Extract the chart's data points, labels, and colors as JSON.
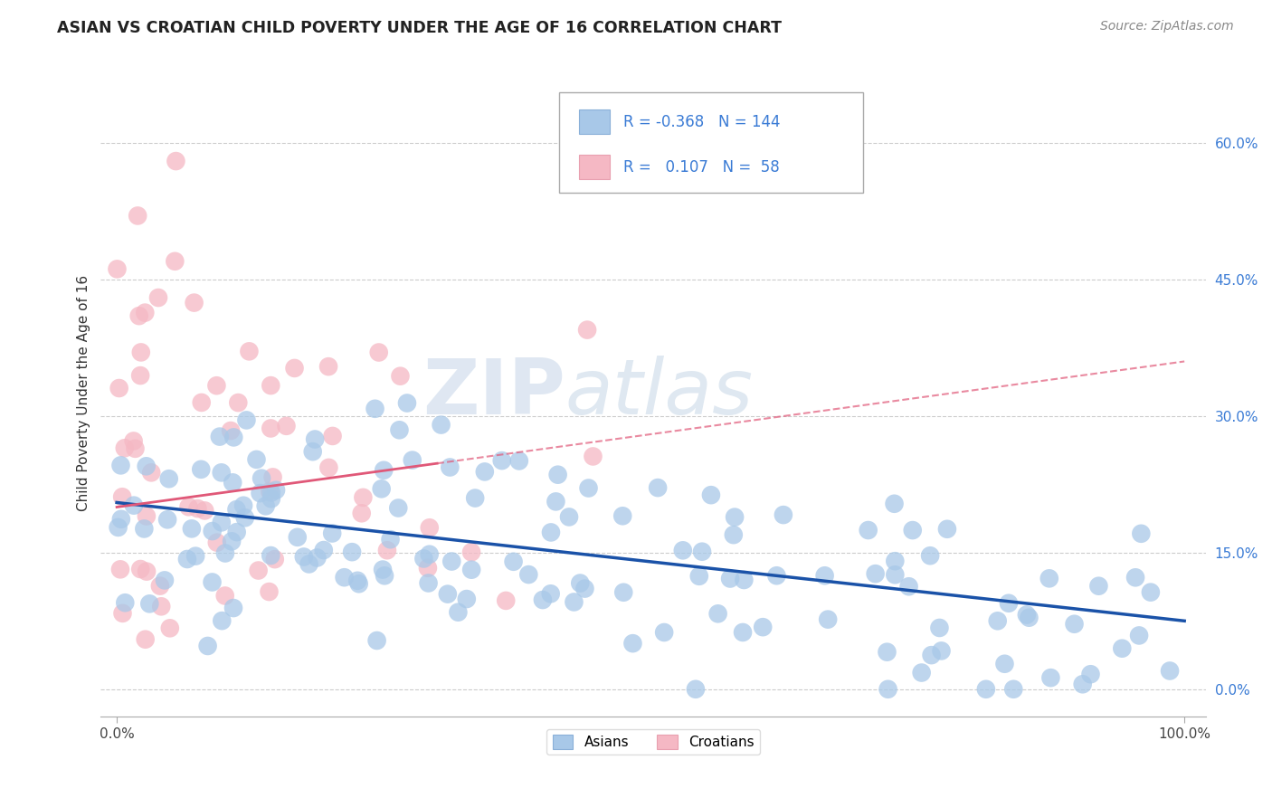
{
  "title": "ASIAN VS CROATIAN CHILD POVERTY UNDER THE AGE OF 16 CORRELATION CHART",
  "source": "Source: ZipAtlas.com",
  "ylabel": "Child Poverty Under the Age of 16",
  "xlim": [
    0,
    100
  ],
  "ylim": [
    0,
    65
  ],
  "yticks": [
    0,
    15,
    30,
    45,
    60
  ],
  "ytick_labels": [
    "0.0%",
    "15.0%",
    "30.0%",
    "45.0%",
    "60.0%"
  ],
  "xticks": [
    0,
    100
  ],
  "xtick_labels": [
    "0.0%",
    "100.0%"
  ],
  "asian_color": "#a8c8e8",
  "croatian_color": "#f5b8c4",
  "asian_line_color": "#1a52a8",
  "croatian_line_color": "#e05878",
  "watermark_zip": "ZIP",
  "watermark_atlas": "atlas",
  "legend_R_asian": "-0.368",
  "legend_N_asian": "144",
  "legend_R_croatian": "0.107",
  "legend_N_croatian": "58",
  "grid_color": "#cccccc",
  "background_color": "#ffffff",
  "asian_intercept": 20.5,
  "asian_slope": -0.13,
  "croatian_intercept": 20.0,
  "croatian_slope": 0.16,
  "asian_x_max": 100,
  "croatian_x_data_max": 30,
  "legend_text_color": "#3a7bd5",
  "legend_label_color": "#444444"
}
